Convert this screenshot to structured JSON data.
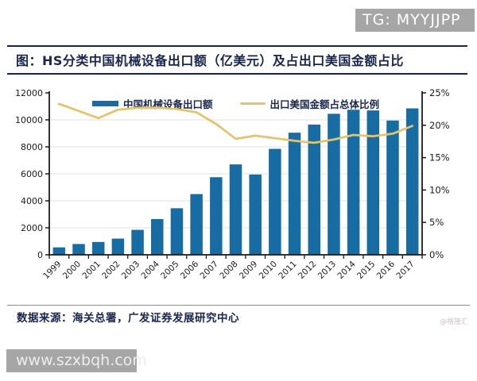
{
  "watermarks": {
    "top_right": "TG: MYYJJPP",
    "bottom_left": "www.szxbqh.com",
    "site_credit": "@格隆汇"
  },
  "figure": {
    "title": "图：HS分类中国机械设备出口额（亿美元）及占出口美国金额占比",
    "source_note": "数据来源：海关总署，广发证券发展研究中心"
  },
  "colors": {
    "bar": "#176CA4",
    "line": "#E3C46E",
    "navy": "#18254C",
    "axis": "#1A1A1A",
    "grid": "#E2E2E2",
    "watermark_box": "#A6A6A6",
    "watermark_text": "#FFFFFF",
    "footer_rule": "#8C8C8C",
    "site_credit": "#CDC5C5"
  },
  "chart_data": {
    "type": "combo",
    "title": "HS分类中国机械设备出口额（亿美元）及占出口美国金额占比",
    "categories": [
      "1999",
      "2000",
      "2001",
      "2002",
      "2003",
      "2004",
      "2005",
      "2006",
      "2007",
      "2008",
      "2009",
      "2010",
      "2011",
      "2012",
      "2013",
      "2014",
      "2015",
      "2016",
      "2017"
    ],
    "series": [
      {
        "name": "中国机械设备出口额",
        "type": "bar",
        "axis": "left",
        "values": [
          550,
          800,
          950,
          1200,
          1850,
          2650,
          3450,
          4500,
          5750,
          6700,
          5950,
          7850,
          9050,
          9650,
          10450,
          10750,
          10700,
          9950,
          10850
        ]
      },
      {
        "name": "出口美国金额占总体比例",
        "type": "line",
        "axis": "right",
        "values": [
          23.3,
          22.2,
          21.1,
          22.4,
          22.7,
          22.7,
          22.5,
          22.0,
          20.2,
          17.9,
          18.4,
          18.0,
          17.6,
          17.3,
          17.8,
          18.5,
          18.3,
          18.7,
          19.9
        ]
      }
    ],
    "left_axis": {
      "min": 0,
      "max": 12000,
      "step": 2000,
      "ticks": [
        "0",
        "2000",
        "4000",
        "6000",
        "8000",
        "10000",
        "12000"
      ]
    },
    "right_axis": {
      "min": 0,
      "max": 25,
      "step": 5,
      "ticks": [
        "0%",
        "5%",
        "10%",
        "15%",
        "20%",
        "25%"
      ]
    },
    "legend_position": "top-center",
    "grid": "horizontal-light"
  }
}
